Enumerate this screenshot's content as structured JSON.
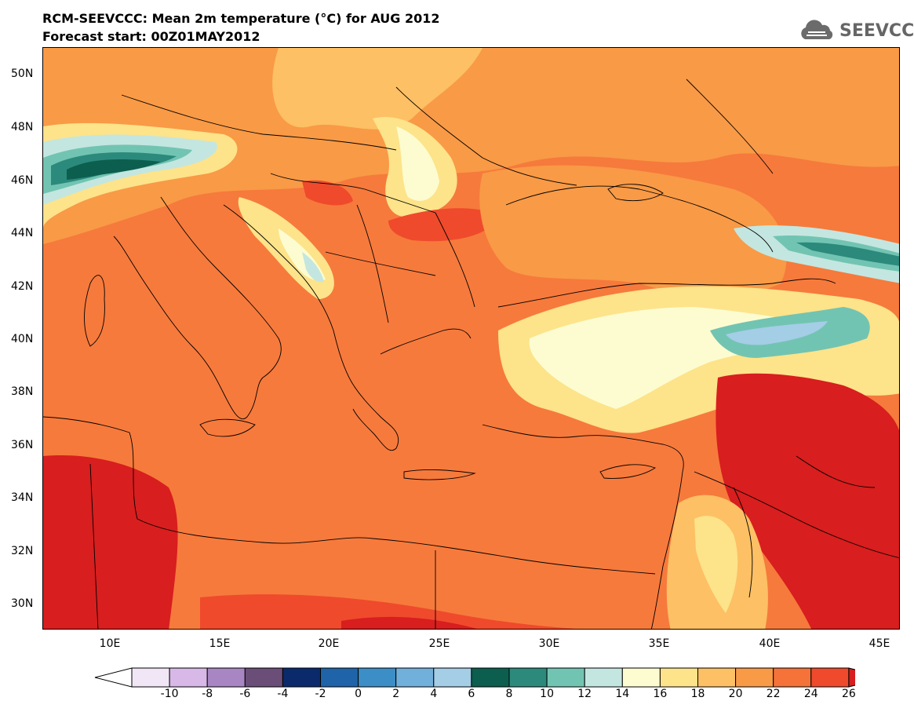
{
  "title": {
    "line1": "RCM-SEEVCCC: Mean 2m temperature (°C) for AUG 2012",
    "line2": "Forecast start: 00Z01MAY2012"
  },
  "logo": {
    "text": "SEEVCCC",
    "icon": "cloud-logo-icon"
  },
  "map": {
    "lat_labels": [
      "50N",
      "48N",
      "46N",
      "44N",
      "42N",
      "40N",
      "38N",
      "36N",
      "34N",
      "32N",
      "30N"
    ],
    "lon_labels": [
      "10E",
      "15E",
      "20E",
      "25E",
      "30E",
      "35E",
      "40E",
      "45E"
    ]
  },
  "colorbar": {
    "labels": [
      "-10",
      "-8",
      "-6",
      "-4",
      "-2",
      "0",
      "2",
      "4",
      "6",
      "8",
      "10",
      "12",
      "14",
      "16",
      "18",
      "20",
      "22",
      "24",
      "26"
    ],
    "colors": [
      "#f0e6f5",
      "#d8b8e6",
      "#a886c4",
      "#6a4e78",
      "#0a2a6b",
      "#1f63a8",
      "#3c8ec6",
      "#72b0dc",
      "#a4cde6",
      "#0c5e4e",
      "#2b8a7c",
      "#72c4b2",
      "#c4e6e0",
      "#fdfcd0",
      "#fde38a",
      "#fdc064",
      "#f99a46",
      "#f57238",
      "#ef4a2c"
    ],
    "left_cap": "#ffffff",
    "right_cap": "#d81e1e"
  }
}
